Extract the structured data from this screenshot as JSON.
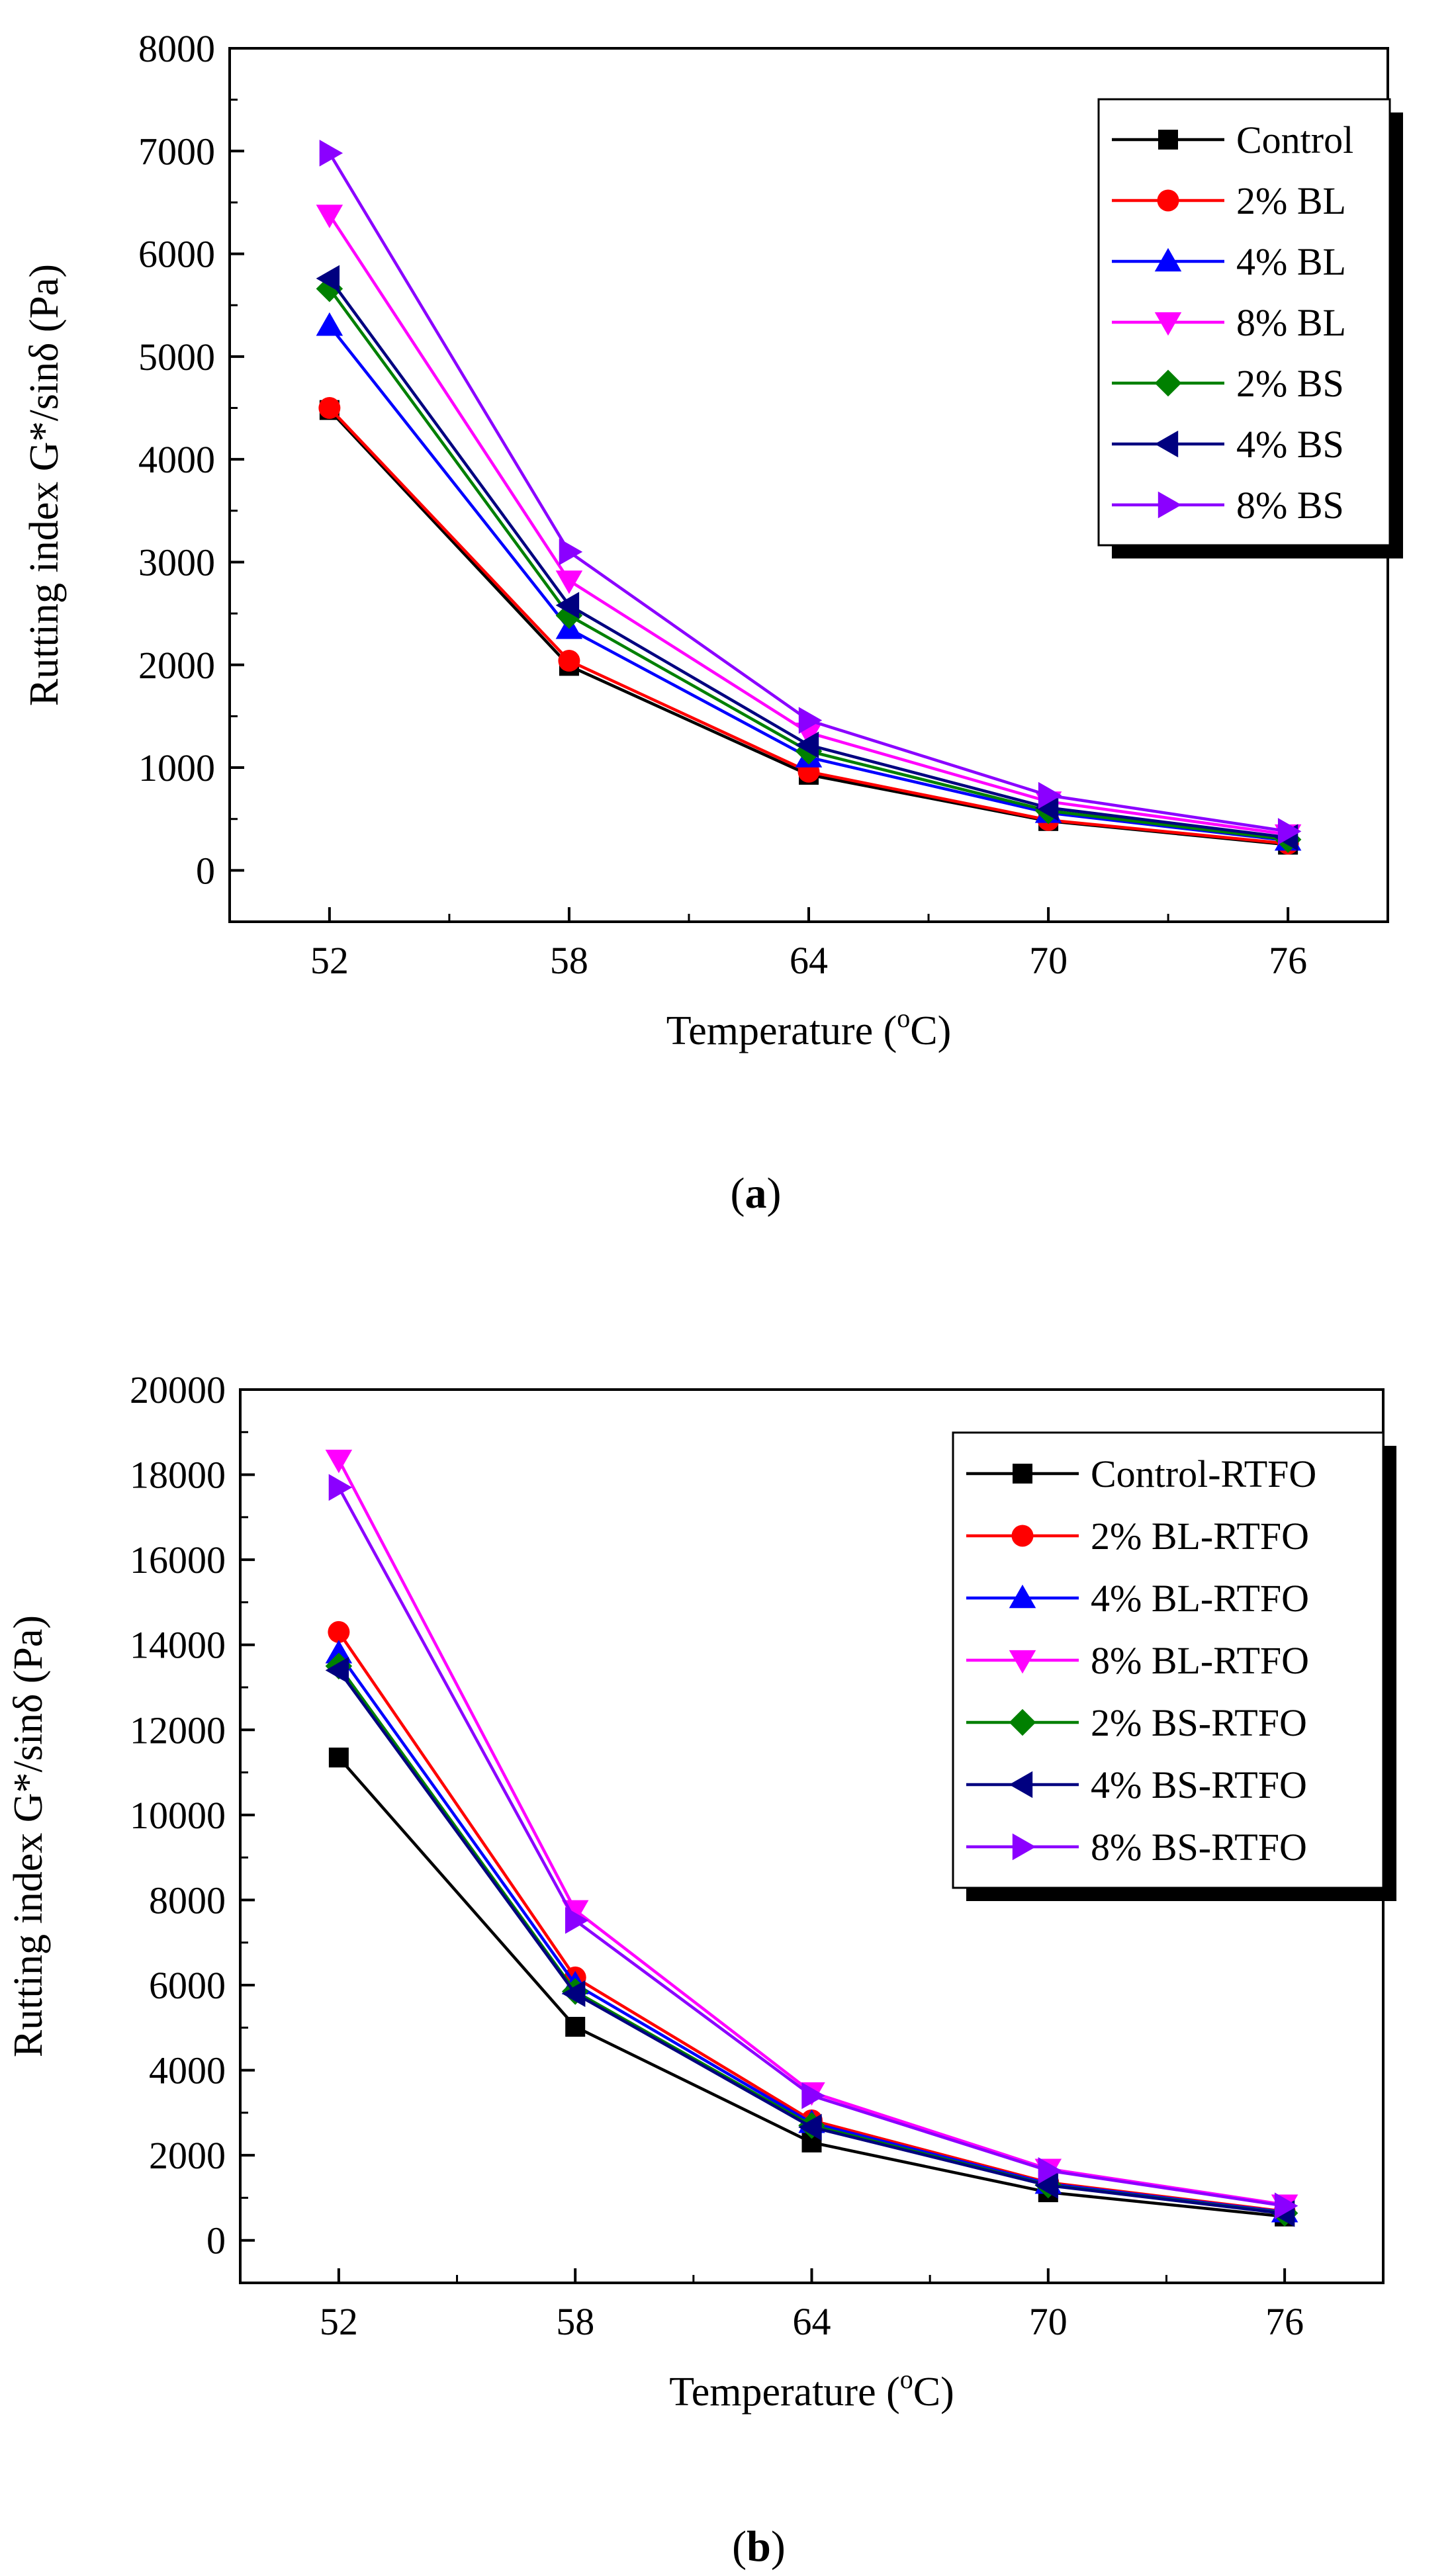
{
  "chart_data": [
    {
      "type": "line",
      "caption": "(a)",
      "caption_parts": [
        "(",
        "a",
        ")"
      ],
      "xlabel_parts": [
        "Temperature (",
        "o",
        "C)"
      ],
      "ylabel": "Rutting index G*/sinδ (Pa)",
      "x": [
        52,
        58,
        64,
        70,
        76
      ],
      "xticks": [
        "52",
        "58",
        "64",
        "70",
        "76"
      ],
      "ylim": [
        -500,
        8000
      ],
      "yticks": [
        0,
        1000,
        2000,
        3000,
        4000,
        5000,
        6000,
        7000,
        8000
      ],
      "ytick_labels": [
        "0",
        "1000",
        "2000",
        "3000",
        "4000",
        "5000",
        "6000",
        "7000",
        "8000"
      ],
      "legend_position": "top-right",
      "series": [
        {
          "name": "Control",
          "color": "#000000",
          "marker": "square",
          "values": [
            4480,
            1990,
            930,
            480,
            250
          ]
        },
        {
          "name": "2% BL",
          "color": "#ff0000",
          "marker": "circle",
          "values": [
            4500,
            2040,
            960,
            490,
            260
          ]
        },
        {
          "name": "4% BL",
          "color": "#0000ff",
          "marker": "triangle-up",
          "values": [
            5300,
            2350,
            1100,
            560,
            290
          ]
        },
        {
          "name": "8% BL",
          "color": "#ff00ff",
          "marker": "triangle-down",
          "values": [
            6380,
            2820,
            1340,
            670,
            350
          ]
        },
        {
          "name": "2% BS",
          "color": "#008000",
          "marker": "diamond",
          "values": [
            5660,
            2480,
            1160,
            580,
            300
          ]
        },
        {
          "name": "4% BS",
          "color": "#000080",
          "marker": "triangle-left",
          "values": [
            5760,
            2580,
            1220,
            610,
            320
          ]
        },
        {
          "name": "8% BS",
          "color": "#8b00ff",
          "marker": "triangle-right",
          "values": [
            6980,
            3100,
            1460,
            730,
            380
          ]
        }
      ]
    },
    {
      "type": "line",
      "caption": "(b)",
      "caption_parts": [
        "(",
        "b",
        ")"
      ],
      "xlabel_parts": [
        "Temperature (",
        "o",
        "C)"
      ],
      "ylabel": "Rutting index G*/sinδ (Pa)",
      "x": [
        52,
        58,
        64,
        70,
        76
      ],
      "xticks": [
        "52",
        "58",
        "64",
        "70",
        "76"
      ],
      "ylim": [
        -1000,
        20000
      ],
      "yticks": [
        0,
        2000,
        4000,
        6000,
        8000,
        10000,
        12000,
        14000,
        16000,
        18000,
        20000
      ],
      "ytick_labels": [
        "0",
        "2000",
        "4000",
        "6000",
        "8000",
        "10000",
        "12000",
        "14000",
        "16000",
        "18000",
        "20000"
      ],
      "legend_position": "top-right",
      "series": [
        {
          "name": "Control-RTFO",
          "color": "#000000",
          "marker": "square",
          "values": [
            11350,
            5020,
            2300,
            1130,
            560
          ]
        },
        {
          "name": "2% BL-RTFO",
          "color": "#ff0000",
          "marker": "circle",
          "values": [
            14300,
            6180,
            2820,
            1360,
            680
          ]
        },
        {
          "name": "4% BL-RTFO",
          "color": "#0000ff",
          "marker": "triangle-up",
          "values": [
            13800,
            6020,
            2760,
            1330,
            660
          ]
        },
        {
          "name": "8% BL-RTFO",
          "color": "#ff00ff",
          "marker": "triangle-down",
          "values": [
            18350,
            7760,
            3480,
            1680,
            840
          ]
        },
        {
          "name": "2% BS-RTFO",
          "color": "#008000",
          "marker": "diamond",
          "values": [
            13500,
            5850,
            2700,
            1300,
            640
          ]
        },
        {
          "name": "4% BS-RTFO",
          "color": "#000080",
          "marker": "triangle-left",
          "values": [
            13400,
            5800,
            2660,
            1290,
            630
          ]
        },
        {
          "name": "8% BS-RTFO",
          "color": "#8b00ff",
          "marker": "triangle-right",
          "values": [
            17700,
            7520,
            3400,
            1640,
            810
          ]
        }
      ]
    }
  ]
}
